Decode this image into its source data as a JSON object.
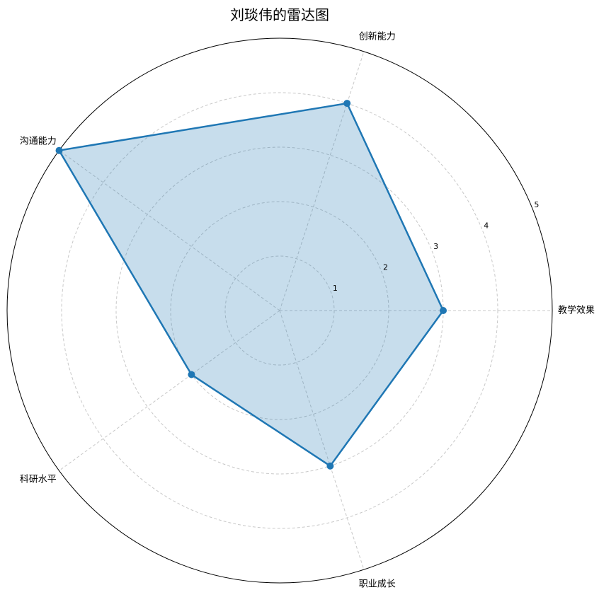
{
  "chart_data": {
    "type": "radar",
    "title": "刘琰伟的雷达图",
    "categories": [
      "教学效果",
      "创新能力",
      "沟通能力",
      "科研水平",
      "职业成长"
    ],
    "series": [
      {
        "values": [
          3,
          4,
          5,
          2,
          3
        ]
      }
    ],
    "rlim": [
      0,
      5
    ],
    "rticks": [
      1,
      2,
      3,
      4,
      5
    ],
    "grid": true,
    "color": "#1f77b4",
    "fill_color": "#1f77b4"
  }
}
